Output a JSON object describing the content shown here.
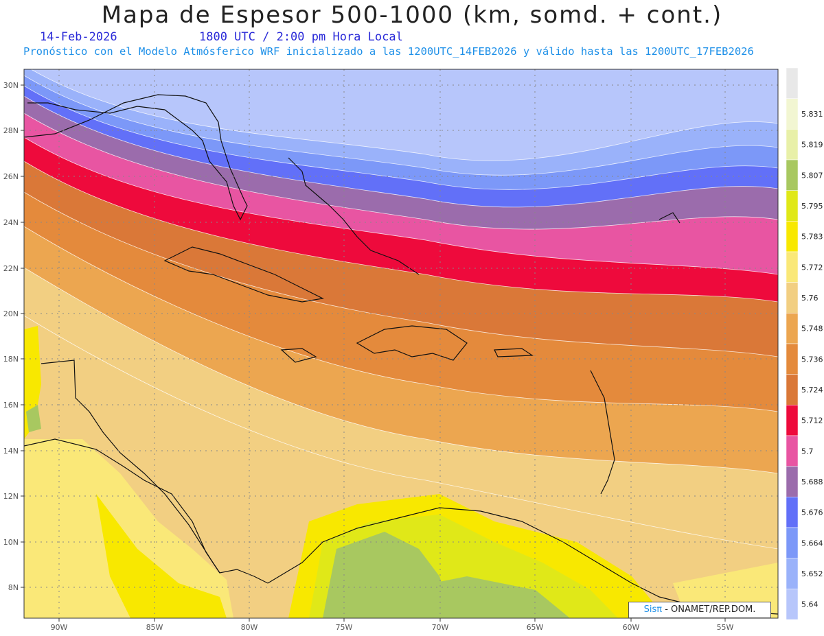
{
  "header": {
    "title": "Mapa de Espesor 500-1000 (km, somd. + cont.)",
    "date": "14-Feb-2026",
    "time": "1800 UTC / 2:00 pm Hora Local",
    "forecast": "Pronóstico con el Modelo Atmósferico WRF inicializado a las 1200UTC_14FEB2026 y válido hasta las  1200UTC_17FEB2026"
  },
  "credit": {
    "sis": "Sisπ",
    "org": " - ONAMET/REP.DOM."
  },
  "map": {
    "lat_labels": [
      "30N",
      "28N",
      "26N",
      "24N",
      "22N",
      "20N",
      "18N",
      "16N",
      "14N",
      "12N",
      "10N",
      "8N"
    ],
    "lon_labels": [
      "90W",
      "85W",
      "80W",
      "75W",
      "70W",
      "65W",
      "60W",
      "55W"
    ]
  },
  "legend": {
    "levels": [
      {
        "label": "",
        "color": "#e8e8e8"
      },
      {
        "label": "5.831",
        "color": "#f2f6d2"
      },
      {
        "label": "5.819",
        "color": "#e8f0a8"
      },
      {
        "label": "5.807",
        "color": "#a8c860"
      },
      {
        "label": "5.795",
        "color": "#e0e818"
      },
      {
        "label": "5.783",
        "color": "#f8e800"
      },
      {
        "label": "5.772",
        "color": "#fae878"
      },
      {
        "label": "5.76",
        "color": "#f2cf82"
      },
      {
        "label": "5.748",
        "color": "#eca650"
      },
      {
        "label": "5.736",
        "color": "#e48a3c"
      },
      {
        "label": "5.724",
        "color": "#da7838"
      },
      {
        "label": "5.712",
        "color": "#ee0a3c"
      },
      {
        "label": "5.7",
        "color": "#e855a2"
      },
      {
        "label": "5.688",
        "color": "#9b6cac"
      },
      {
        "label": "5.676",
        "color": "#6270f8"
      },
      {
        "label": "5.664",
        "color": "#7c98f8"
      },
      {
        "label": "5.652",
        "color": "#9ab2fa"
      },
      {
        "label": "5.64",
        "color": "#b7c6fb"
      }
    ]
  }
}
